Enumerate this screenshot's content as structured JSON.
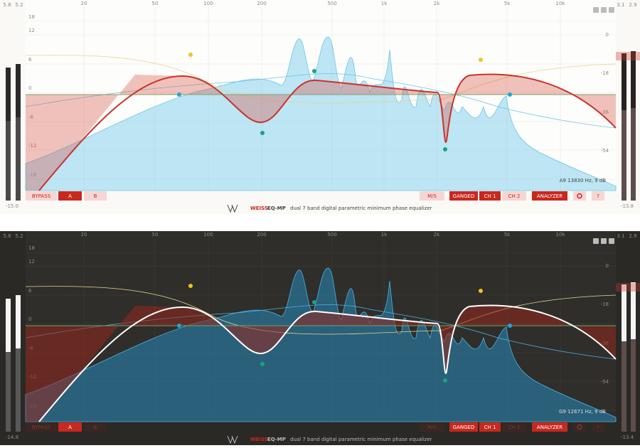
{
  "panels": [
    {
      "theme": "light",
      "meters": {
        "left": {
          "peak_1": "5.8",
          "peak_2": "5.2",
          "reading": "-15.0"
        },
        "right": {
          "peak_1": "3.1",
          "peak_2": "2.9",
          "reading": "-13.8"
        }
      },
      "frequency_labels": [
        "20",
        "50",
        "100",
        "200",
        "500",
        "1k",
        "2k",
        "5k",
        "10k"
      ],
      "gain_labels": [
        "18",
        "12",
        "6",
        "0",
        "-6",
        "-12",
        "-18"
      ],
      "analyzer_labels": [
        "0",
        "-18",
        "-36",
        "-54"
      ],
      "band_info": "A9 13830 Hz, 9 dB",
      "buttons": [
        "BYPASS",
        "A",
        "B",
        "M/S",
        "GANGED",
        "CH 1",
        "CH 2",
        "ANALYZER",
        "?"
      ],
      "brand": "WEISS",
      "product": "EQ-MP",
      "tagline": "dual 7 band digital parametric minimum phase equalizer"
    },
    {
      "theme": "dark",
      "meters": {
        "left": {
          "peak_1": "5.8",
          "peak_2": "5.2",
          "reading": "-14.8"
        },
        "right": {
          "peak_1": "3.1",
          "peak_2": "2.9",
          "reading": "-13.4"
        }
      },
      "frequency_labels": [
        "20",
        "50",
        "100",
        "200",
        "500",
        "1k",
        "2k",
        "5k",
        "10k"
      ],
      "gain_labels": [
        "18",
        "12",
        "6",
        "0",
        "-6",
        "-12",
        "-18"
      ],
      "analyzer_labels": [
        "0",
        "-18",
        "-36",
        "-54"
      ],
      "band_info": "G9 12671 Hz, 9 dB",
      "buttons": [
        "BYPASS",
        "A",
        "B",
        "M/S",
        "GANGED",
        "CH 1",
        "CH 2",
        "ANALYZER",
        "?"
      ],
      "brand": "WEISS",
      "product": "EQ-MP",
      "tagline": "dual 7 band digital parametric minimum phase equalizer"
    }
  ]
}
